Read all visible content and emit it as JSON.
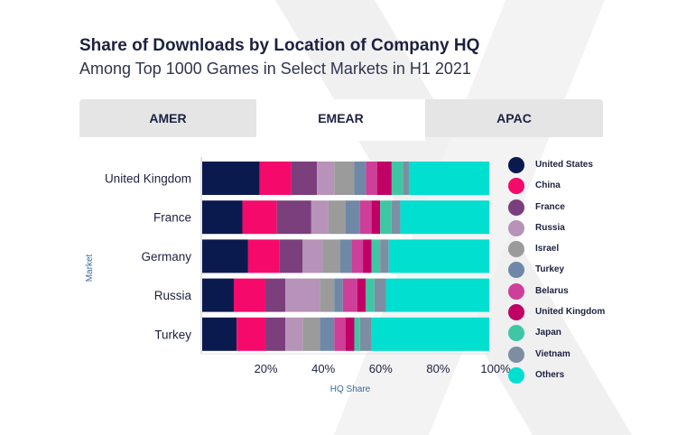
{
  "header": {
    "title": "Share of Downloads by Location of Company HQ",
    "subtitle": "Among Top 1000 Games in Select Markets in H1 2021"
  },
  "tabs": [
    {
      "label": "AMER",
      "active": false
    },
    {
      "label": "EMEAR",
      "active": true
    },
    {
      "label": "APAC",
      "active": false
    }
  ],
  "chart_data": {
    "type": "bar",
    "orientation": "horizontal",
    "stacked": true,
    "xlabel": "HQ Share",
    "ylabel": "Market",
    "xlim": [
      0,
      100
    ],
    "x_ticks": [
      "20%",
      "40%",
      "60%",
      "80%",
      "100%"
    ],
    "categories": [
      "United Kingdom",
      "France",
      "Germany",
      "Russia",
      "Turkey"
    ],
    "legend_position": "right",
    "series": [
      {
        "name": "United States",
        "color": "#0b1a4e",
        "values": [
          20,
          14,
          16,
          11,
          12
        ]
      },
      {
        "name": "China",
        "color": "#f50a6b",
        "values": [
          11,
          12,
          11,
          11,
          10
        ]
      },
      {
        "name": "France",
        "color": "#7b3f7d",
        "values": [
          9,
          12,
          8,
          7,
          7
        ]
      },
      {
        "name": "Russia",
        "color": "#b792b9",
        "values": [
          6,
          6,
          7,
          12,
          6
        ]
      },
      {
        "name": "Israel",
        "color": "#9b9b9b",
        "values": [
          7,
          6,
          6,
          5,
          6
        ]
      },
      {
        "name": "Turkey",
        "color": "#6f88a8",
        "values": [
          4,
          5,
          4,
          3,
          5
        ]
      },
      {
        "name": "Belarus",
        "color": "#cd3f99",
        "values": [
          4,
          4,
          4,
          5,
          4
        ]
      },
      {
        "name": "United Kingdom",
        "color": "#c10066",
        "values": [
          5,
          3,
          3,
          3,
          3
        ]
      },
      {
        "name": "Japan",
        "color": "#3fc7a4",
        "values": [
          4,
          4,
          3,
          3,
          2
        ]
      },
      {
        "name": "Vietnam",
        "color": "#7d8ea3",
        "values": [
          2,
          3,
          3,
          4,
          4
        ]
      },
      {
        "name": "Others",
        "color": "#00dfd0",
        "values": [
          28,
          31,
          35,
          36,
          41
        ]
      }
    ]
  }
}
